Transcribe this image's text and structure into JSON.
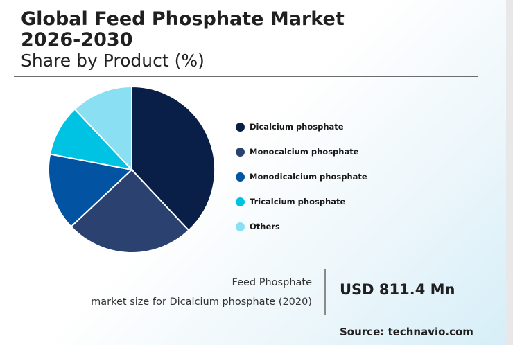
{
  "header": {
    "title_line1": "Global Feed Phosphate Market",
    "title_line2": "2026-2030",
    "subtitle": "Share by Product (%)"
  },
  "chart_data": {
    "type": "pie",
    "slices": [
      {
        "label": "Dicalcium phosphate",
        "value": 38,
        "color": "#0a1f48"
      },
      {
        "label": "Monocalcium phosphate",
        "value": 25,
        "color": "#2b416f"
      },
      {
        "label": "Monodicalcium phosphate",
        "value": 15,
        "color": "#0353a3"
      },
      {
        "label": "Tricalcium phosphate",
        "value": 10,
        "color": "#00c2e3"
      },
      {
        "label": "Others",
        "value": 12,
        "color": "#8adff2"
      }
    ],
    "legend_position": "right"
  },
  "footer": {
    "note_line1": "Feed Phosphate",
    "note_line2": "market size for Dicalcium phosphate (2020)",
    "value": "USD 811.4 Mn",
    "source": "Source: technavio.com"
  }
}
